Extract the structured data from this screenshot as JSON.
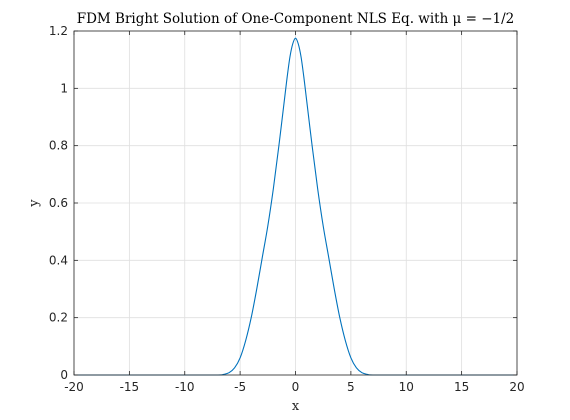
{
  "chart_data": {
    "type": "line",
    "title": "FDM Bright Solution of One-Component NLS Eq. with μ = −1/2",
    "xlabel": "x",
    "ylabel": "y",
    "xlim": [
      -20,
      20
    ],
    "ylim": [
      0,
      1.2
    ],
    "xticks": [
      -20,
      -15,
      -10,
      -5,
      0,
      5,
      10,
      15,
      20
    ],
    "xtick_labels": [
      "-20",
      "-15",
      "-10",
      "-5",
      "0",
      "5",
      "10",
      "15",
      "20"
    ],
    "yticks": [
      0,
      0.2,
      0.4,
      0.6,
      0.8,
      1.0,
      1.2
    ],
    "ytick_labels": [
      "0",
      "0.2",
      "0.4",
      "0.6",
      "0.8",
      "1",
      "1.2"
    ],
    "grid": true,
    "line_color": "#0072BD",
    "series": [
      {
        "x": [
          -20,
          -10,
          -7,
          -6.5,
          -6,
          -5.5,
          -5,
          -4.5,
          -4,
          -3.5,
          -3,
          -2.5,
          -2,
          -1.5,
          -1,
          -0.75,
          -0.5,
          -0.25,
          0,
          0.25,
          0.5,
          0.75,
          1,
          1.5,
          2,
          2.5,
          3,
          3.5,
          4,
          4.5,
          5,
          5.5,
          6,
          6.5,
          7,
          10,
          20
        ],
        "y": [
          0,
          0,
          0,
          0.002,
          0.008,
          0.025,
          0.06,
          0.12,
          0.2,
          0.3,
          0.41,
          0.52,
          0.65,
          0.8,
          0.96,
          1.04,
          1.11,
          1.155,
          1.175,
          1.155,
          1.11,
          1.04,
          0.96,
          0.8,
          0.65,
          0.52,
          0.41,
          0.3,
          0.2,
          0.12,
          0.06,
          0.025,
          0.008,
          0.002,
          0,
          0,
          0
        ]
      }
    ]
  }
}
